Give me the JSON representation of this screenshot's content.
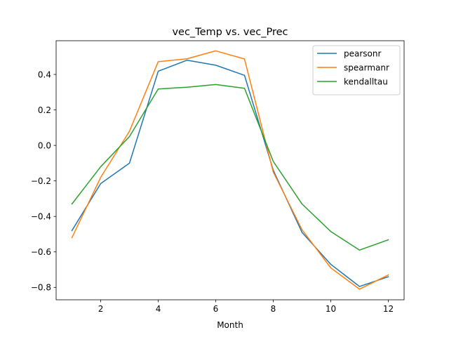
{
  "chart_data": {
    "type": "line",
    "title": "vec_Temp vs. vec_Prec",
    "xlabel": "Month",
    "ylabel": "",
    "x": [
      1,
      2,
      3,
      4,
      5,
      6,
      7,
      8,
      9,
      10,
      11,
      12
    ],
    "xlim": [
      0.45,
      12.55
    ],
    "ylim": [
      -0.87,
      0.59
    ],
    "xticks": [
      2,
      4,
      6,
      8,
      10,
      12
    ],
    "xtick_labels": [
      "2",
      "4",
      "6",
      "8",
      "10",
      "12"
    ],
    "yticks": [
      -0.8,
      -0.6,
      -0.4,
      -0.2,
      0.0,
      0.2,
      0.4
    ],
    "ytick_labels": [
      "−0.8",
      "−0.6",
      "−0.4",
      "−0.2",
      "0.0",
      "0.2",
      "0.4"
    ],
    "grid": false,
    "legend_position": "top-right",
    "series": [
      {
        "name": "pearsonr",
        "color": "#1f77b4",
        "values": [
          -0.48,
          -0.215,
          -0.1,
          0.418,
          0.48,
          0.452,
          0.395,
          -0.14,
          -0.49,
          -0.67,
          -0.795,
          -0.74
        ]
      },
      {
        "name": "spearmanr",
        "color": "#ff7f0e",
        "values": [
          -0.52,
          -0.18,
          0.08,
          0.472,
          0.488,
          0.533,
          0.487,
          -0.15,
          -0.475,
          -0.69,
          -0.81,
          -0.73
        ]
      },
      {
        "name": "kendalltau",
        "color": "#2ca02c",
        "values": [
          -0.33,
          -0.12,
          0.05,
          0.318,
          0.328,
          0.343,
          0.322,
          -0.09,
          -0.33,
          -0.485,
          -0.59,
          -0.532
        ]
      }
    ]
  }
}
